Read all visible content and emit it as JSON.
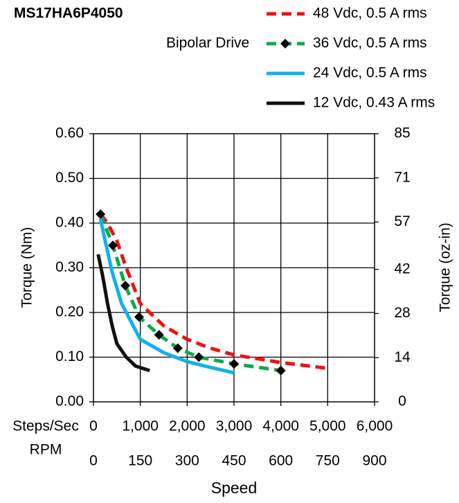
{
  "chart_data": {
    "type": "line",
    "title": "MS17HA6P4050",
    "subtitle": "Bipolar Drive",
    "xlabel": "Speed",
    "ylabel": "Torque (Nm)",
    "y2label": "Torque (oz-in)",
    "x_axis_label": "Steps/Sec",
    "x2_axis_label": "RPM",
    "xlim": [
      0,
      6000
    ],
    "xticks": [
      0,
      {
        "value": 1000,
        "label": "1,000"
      },
      {
        "value": 2000,
        "label": "2,000"
      },
      {
        "value": 3000,
        "label": "3,000"
      },
      {
        "value": 4000,
        "label": "4,000"
      },
      {
        "value": 5000,
        "label": "5,000"
      },
      {
        "value": 6000,
        "label": "6,000"
      }
    ],
    "x2lim": [
      0,
      900
    ],
    "x2ticks": [
      0,
      150,
      300,
      450,
      600,
      750,
      900
    ],
    "ylim": [
      0,
      0.6
    ],
    "yticks": [
      {
        "value": 0,
        "label": "0.00"
      },
      {
        "value": 0.1,
        "label": "0.10"
      },
      {
        "value": 0.2,
        "label": "0.20"
      },
      {
        "value": 0.3,
        "label": "0.30"
      },
      {
        "value": 0.4,
        "label": "0.40"
      },
      {
        "value": 0.5,
        "label": "0.50"
      },
      {
        "value": 0.6,
        "label": "0.60"
      }
    ],
    "y2lim": [
      0,
      85
    ],
    "y2ticks": [
      0,
      14,
      28,
      42,
      57,
      71,
      85
    ],
    "grid": true,
    "series": [
      {
        "name": "48 Vdc, 0.5 A rms",
        "color": "#ee1111",
        "style": "dashed",
        "marker": false,
        "x": [
          150,
          300,
          500,
          700,
          1000,
          1500,
          2000,
          2500,
          3000,
          4000,
          5000
        ],
        "values": [
          0.42,
          0.4,
          0.36,
          0.3,
          0.22,
          0.17,
          0.14,
          0.12,
          0.105,
          0.088,
          0.075
        ]
      },
      {
        "name": "36 Vdc, 0.5 A rms",
        "color": "#11a84a",
        "style": "dashed",
        "marker": true,
        "x": [
          150,
          414,
          680,
          975,
          1400,
          1800,
          2250,
          3000,
          4000
        ],
        "values": [
          0.42,
          0.35,
          0.26,
          0.19,
          0.15,
          0.12,
          0.1,
          0.085,
          0.07
        ]
      },
      {
        "name": "24 Vdc, 0.5 A rms",
        "color": "#11b0ee",
        "style": "solid",
        "marker": false,
        "x": [
          150,
          250,
          400,
          600,
          1000,
          1500,
          2000,
          2500,
          3000
        ],
        "values": [
          0.41,
          0.36,
          0.29,
          0.22,
          0.14,
          0.11,
          0.09,
          0.077,
          0.065
        ]
      },
      {
        "name": "12 Vdc, 0.43 A rms",
        "color": "#111111",
        "style": "solid",
        "marker": false,
        "x": [
          100,
          200,
          300,
          400,
          500,
          700,
          900,
          1200
        ],
        "values": [
          0.33,
          0.28,
          0.22,
          0.17,
          0.13,
          0.1,
          0.08,
          0.07
        ]
      }
    ]
  }
}
